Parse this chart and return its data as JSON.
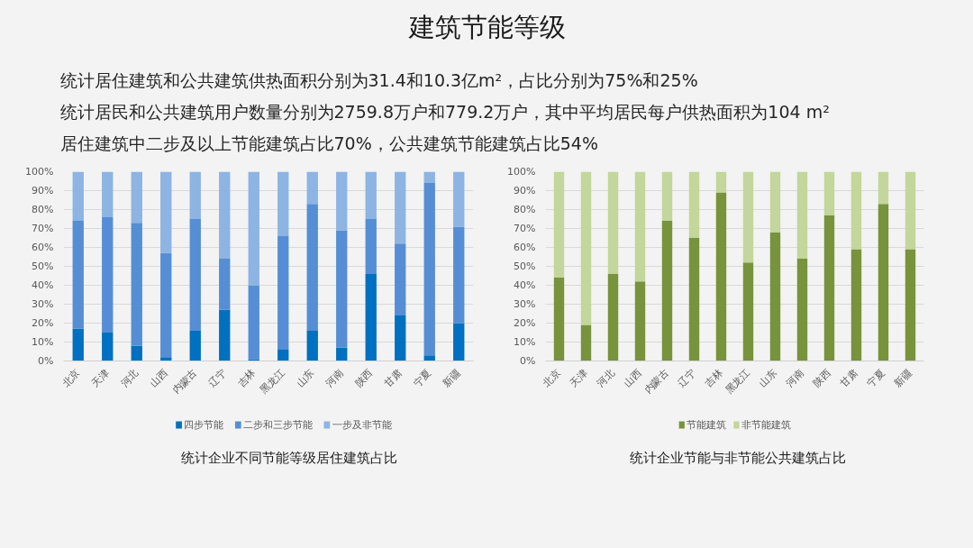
{
  "chart_data": [
    {
      "type": "other",
      "title": "建筑节能等级",
      "annotations": [
        "统计居住建筑和公共建筑供热面积分别为31.4和10.3亿m²，占比分别为75%和25%",
        "统计居民和公共建筑用户数量分别为2759.8万户和779.2万户，其中平均居民每户供热面积为104 m²",
        "居住建筑中二步及以上节能建筑占比70%，公共建筑节能建筑占比54%"
      ]
    },
    {
      "type": "bar",
      "title": "统计企业不同节能等级居住建筑占比",
      "stacked": true,
      "grid": "y",
      "legend": "bottom",
      "categories": [
        "北京",
        "天津",
        "河北",
        "山西",
        "内蒙古",
        "辽宁",
        "吉林",
        "黑龙江",
        "山东",
        "河南",
        "陕西",
        "甘肃",
        "宁夏",
        "新疆"
      ],
      "ylim": [
        0,
        100
      ],
      "yticks": [
        {
          "value": 0,
          "label": "0%"
        },
        {
          "value": 10,
          "label": "10%"
        },
        {
          "value": 20,
          "label": "20%"
        },
        {
          "value": 30,
          "label": "30%"
        },
        {
          "value": 40,
          "label": "40%"
        },
        {
          "value": 50,
          "label": "50%"
        },
        {
          "value": 60,
          "label": "60%"
        },
        {
          "value": 70,
          "label": "70%"
        },
        {
          "value": 80,
          "label": "80%"
        },
        {
          "value": 90,
          "label": "90%"
        },
        {
          "value": 100,
          "label": "100%"
        }
      ],
      "series": [
        {
          "name": "四步节能",
          "color": "#0070c0",
          "values": [
            17,
            15,
            8,
            2,
            16,
            27,
            1,
            6,
            16,
            7,
            46,
            24,
            3,
            20
          ]
        },
        {
          "name": "二步和三步节能",
          "color": "#558ed5",
          "values": [
            57,
            61,
            65,
            55,
            59,
            27,
            39,
            60,
            67,
            62,
            29,
            38,
            91,
            51
          ]
        },
        {
          "name": "一步及非节能",
          "color": "#8db4e2",
          "values": [
            26,
            24,
            27,
            43,
            25,
            46,
            60,
            34,
            17,
            31,
            25,
            38,
            6,
            29
          ]
        }
      ]
    },
    {
      "type": "bar",
      "title": "统计企业节能与非节能公共建筑占比",
      "stacked": true,
      "grid": "y",
      "legend": "bottom",
      "categories": [
        "北京",
        "天津",
        "河北",
        "山西",
        "内蒙古",
        "辽宁",
        "吉林",
        "黑龙江",
        "山东",
        "河南",
        "陕西",
        "甘肃",
        "宁夏",
        "新疆"
      ],
      "ylim": [
        0,
        100
      ],
      "yticks": [
        {
          "value": 0,
          "label": "0%"
        },
        {
          "value": 10,
          "label": "10%"
        },
        {
          "value": 20,
          "label": "20%"
        },
        {
          "value": 30,
          "label": "30%"
        },
        {
          "value": 40,
          "label": "40%"
        },
        {
          "value": 50,
          "label": "50%"
        },
        {
          "value": 60,
          "label": "60%"
        },
        {
          "value": 70,
          "label": "70%"
        },
        {
          "value": 80,
          "label": "80%"
        },
        {
          "value": 90,
          "label": "90%"
        },
        {
          "value": 100,
          "label": "100%"
        }
      ],
      "series": [
        {
          "name": "节能建筑",
          "color": "#77933c",
          "values": [
            44,
            19,
            46,
            42,
            74,
            65,
            89,
            52,
            68,
            54,
            77,
            59,
            83,
            59
          ]
        },
        {
          "name": "非节能建筑",
          "color": "#c3d69b",
          "values": [
            56,
            81,
            54,
            58,
            26,
            35,
            11,
            48,
            32,
            46,
            23,
            41,
            17,
            41
          ]
        }
      ]
    }
  ]
}
